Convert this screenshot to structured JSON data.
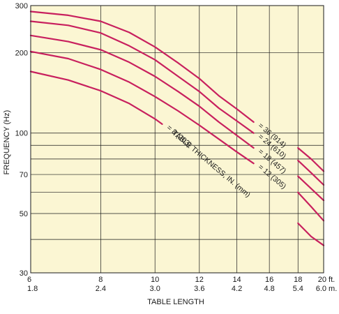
{
  "chart_data": {
    "type": "line",
    "title": "",
    "xlabel": "TABLE LENGTH",
    "ylabel": "FREQUENCY (Hz)",
    "x_scale": "log",
    "y_scale": "log",
    "xlim": [
      6,
      20
    ],
    "ylim": [
      30,
      300
    ],
    "grid": true,
    "background_color": "#fbf6d3",
    "line_color": "#c8205e",
    "x_ticks": [
      {
        "value": 6,
        "label": "6",
        "sub": "1.8"
      },
      {
        "value": 8,
        "label": "8",
        "sub": "2.4"
      },
      {
        "value": 10,
        "label": "10",
        "sub": "3.0"
      },
      {
        "value": 12,
        "label": "12",
        "sub": "3.6"
      },
      {
        "value": 14,
        "label": "14",
        "sub": "4.2"
      },
      {
        "value": 16,
        "label": "16",
        "sub": "4.8"
      },
      {
        "value": 18,
        "label": "18",
        "sub": "5.4"
      },
      {
        "value": 20,
        "label": "20 ft.",
        "sub": "6.0 m."
      }
    ],
    "y_ticks": [
      {
        "value": 30,
        "label": "30"
      },
      {
        "value": 50,
        "label": "50"
      },
      {
        "value": 70,
        "label": "70"
      },
      {
        "value": 100,
        "label": "100"
      },
      {
        "value": 200,
        "label": "200"
      },
      {
        "value": 300,
        "label": "300"
      }
    ],
    "y_gridlines": [
      40,
      60,
      80,
      90
    ],
    "series": [
      {
        "name": "36 (914)",
        "label": "= 36 (914)",
        "segments": [
          [
            [
              6,
              285
            ],
            [
              7,
              276
            ],
            [
              8,
              262
            ],
            [
              9,
              238
            ],
            [
              10,
              210
            ],
            [
              11,
              183
            ],
            [
              12,
              160
            ],
            [
              13,
              138
            ],
            [
              14,
              123
            ],
            [
              15,
              110
            ]
          ],
          [
            [
              18,
              88
            ],
            [
              19,
              80
            ],
            [
              20,
              72
            ]
          ]
        ]
      },
      {
        "name": "24 (610)",
        "label": "= 24 (610)",
        "segments": [
          [
            [
              6,
              262
            ],
            [
              7,
              253
            ],
            [
              8,
              237
            ],
            [
              9,
              212
            ],
            [
              10,
              188
            ],
            [
              11,
              163
            ],
            [
              12,
              143
            ],
            [
              13,
              124
            ],
            [
              14,
              111
            ],
            [
              15,
              100
            ]
          ],
          [
            [
              18,
              79
            ],
            [
              19,
              71
            ],
            [
              20,
              64
            ]
          ]
        ]
      },
      {
        "name": "18 (457)",
        "label": "= 18 (457)",
        "segments": [
          [
            [
              6,
              232
            ],
            [
              7,
              220
            ],
            [
              8,
              205
            ],
            [
              9,
              184
            ],
            [
              10,
              163
            ],
            [
              11,
              143
            ],
            [
              12,
              126
            ],
            [
              13,
              110
            ],
            [
              14,
              98
            ],
            [
              15,
              88
            ]
          ],
          [
            [
              18,
              69
            ],
            [
              19,
              62
            ],
            [
              20,
              56
            ]
          ]
        ]
      },
      {
        "name": "12 (305)",
        "label": "= 12 (305)",
        "segments": [
          [
            [
              6,
              202
            ],
            [
              7,
              190
            ],
            [
              8,
              173
            ],
            [
              9,
              155
            ],
            [
              10,
              137
            ],
            [
              11,
              121
            ],
            [
              12,
              107
            ],
            [
              13,
              95
            ],
            [
              14,
              85
            ],
            [
              15,
              77
            ]
          ],
          [
            [
              18,
              60
            ],
            [
              19,
              53
            ],
            [
              20,
              47
            ]
          ]
        ]
      },
      {
        "name": "8 (203)",
        "label": "= 8 (203)",
        "segments": [
          [
            [
              6,
              170
            ],
            [
              7,
              158
            ],
            [
              8,
              144
            ],
            [
              9,
              129
            ],
            [
              10,
              113
            ],
            [
              10.3,
              108
            ]
          ],
          [
            [
              18,
              46
            ],
            [
              19,
              41
            ],
            [
              20,
              38
            ]
          ]
        ]
      }
    ],
    "annotation": "TABLE THICKNESS,  IN. (mm)"
  }
}
